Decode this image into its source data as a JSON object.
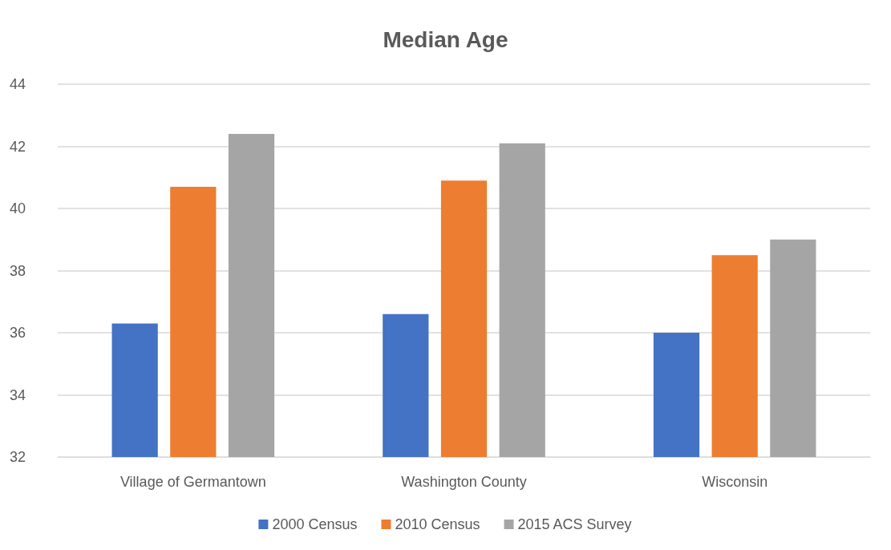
{
  "chart_data": {
    "type": "bar",
    "title": "Median Age",
    "categories": [
      "Village of Germantown",
      "Washington County",
      "Wisconsin"
    ],
    "series": [
      {
        "name": "2000 Census",
        "color": "#4472c4",
        "values": [
          36.3,
          36.6,
          36.0
        ]
      },
      {
        "name": "2010 Census",
        "color": "#ed7d31",
        "values": [
          40.7,
          40.9,
          38.5
        ]
      },
      {
        "name": "2015 ACS Survey",
        "color": "#a5a5a5",
        "values": [
          42.4,
          42.1,
          39.0
        ]
      }
    ],
    "ylim": [
      32,
      44
    ],
    "yticks": [
      32,
      34,
      36,
      38,
      40,
      42,
      44
    ],
    "grid": "y",
    "legend": "bottom"
  }
}
